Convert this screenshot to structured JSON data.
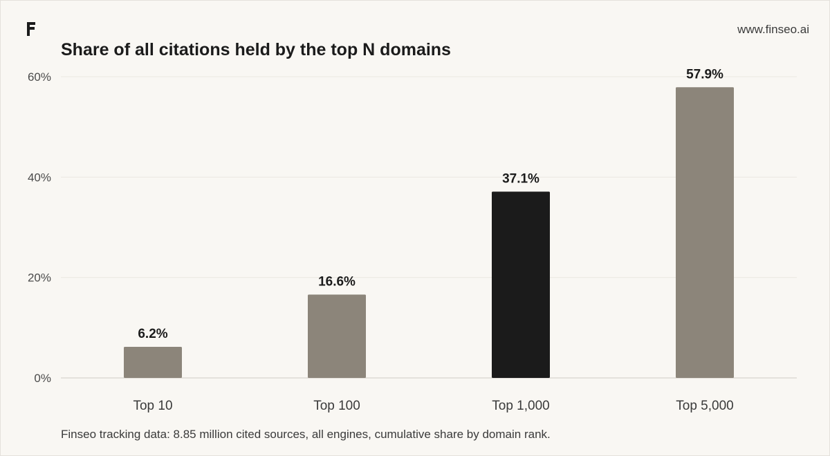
{
  "header": {
    "site_url": "www.finseo.ai"
  },
  "logo": {
    "icon": "finseo-logo-icon"
  },
  "chart_data": {
    "type": "bar",
    "title": "Share of all citations held by the top N domains",
    "categories": [
      "Top 10",
      "Top 100",
      "Top 1,000",
      "Top 5,000"
    ],
    "values": [
      6.2,
      16.6,
      37.1,
      57.9
    ],
    "value_labels": [
      "6.2%",
      "16.6%",
      "37.1%",
      "57.9%"
    ],
    "highlight_index": 2,
    "ylim": [
      0,
      60
    ],
    "yticks": [
      0,
      20,
      40,
      60
    ],
    "ytick_labels": [
      "0%",
      "20%",
      "40%",
      "60%"
    ],
    "xlabel": "",
    "ylabel": "",
    "grid": true,
    "colors": {
      "bar": "#8c857a",
      "highlight": "#1b1b1b",
      "grid": "#ebe8e2",
      "baseline": "#cfcbc4"
    }
  },
  "footnote": "Finseo tracking data: 8.85 million cited sources, all engines, cumulative share by domain rank."
}
